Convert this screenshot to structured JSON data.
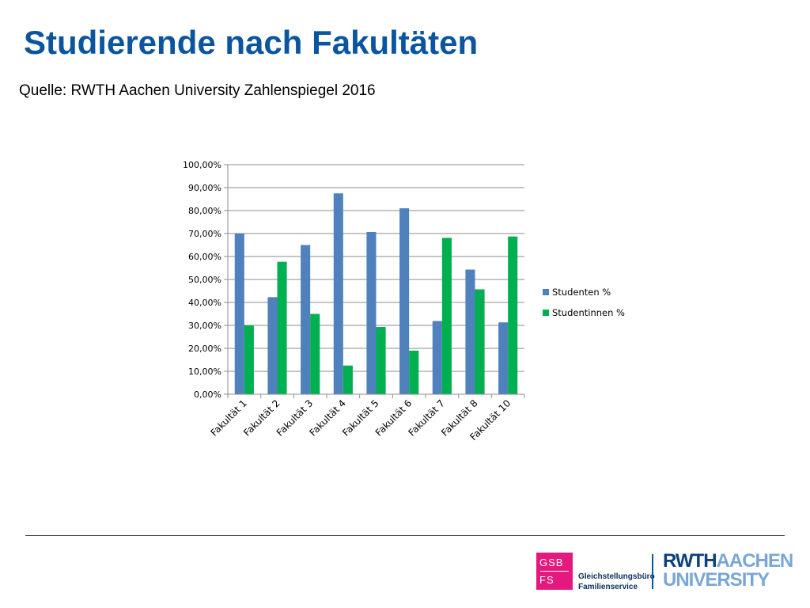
{
  "slide": {
    "title": "Studierende nach Fakultäten",
    "subtitle": "Quelle: RWTH Aachen University Zahlenspiegel 2016"
  },
  "chart_data": {
    "type": "bar",
    "categories": [
      "Fakultät 1",
      "Fakultät 2",
      "Fakultät 3",
      "Fakultät 4",
      "Fakultät 5",
      "Fakultät 6",
      "Fakultät 7",
      "Fakultät 8",
      "Fakultät 10"
    ],
    "series": [
      {
        "name": "Studenten %",
        "color": "#4f81bd",
        "values": [
          70.0,
          42.3,
          65.0,
          87.5,
          70.7,
          81.0,
          31.9,
          54.3,
          31.3
        ]
      },
      {
        "name": "Studentinnen %",
        "color": "#00b050",
        "values": [
          30.0,
          57.7,
          35.0,
          12.5,
          29.3,
          19.0,
          68.1,
          45.7,
          68.7
        ]
      }
    ],
    "ylim": [
      0,
      100
    ],
    "yticks": [
      "0,00%",
      "10,00%",
      "20,00%",
      "30,00%",
      "40,00%",
      "50,00%",
      "60,00%",
      "70,00%",
      "80,00%",
      "90,00%",
      "100,00%"
    ],
    "grid": true,
    "legend": "right"
  },
  "footer": {
    "gsb_line1": "GSB",
    "gsb_line2": "FS",
    "gsb_name1": "Gleichstellungsbüro",
    "gsb_name2": "Familienservice",
    "rwth_part1": "RWTH",
    "rwth_part2": "AACHEN",
    "rwth_part3": "UNIVERSITY"
  }
}
